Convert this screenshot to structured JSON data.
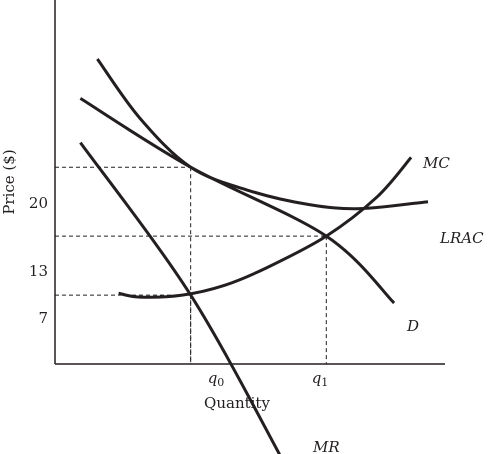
{
  "chart_data": {
    "type": "line",
    "xlabel": "Quantity",
    "ylabel": "Price ($)",
    "y_ticks": [
      "20",
      "13",
      "7"
    ],
    "x_ticks": [
      "q0",
      "q1"
    ],
    "x_tick_subscripts": [
      "0",
      "1"
    ],
    "series": [
      {
        "name": "MC",
        "points": [
          [
            0.75,
            7.2
          ],
          [
            1.0,
            6.8
          ],
          [
            1.5,
            7.0
          ],
          [
            2.0,
            8.0
          ],
          [
            2.5,
            9.8
          ],
          [
            3.2,
            13.0
          ],
          [
            3.8,
            17.0
          ],
          [
            4.2,
            21.0
          ]
        ]
      },
      {
        "name": "LRAC",
        "points": [
          [
            0.5,
            31.0
          ],
          [
            1.0,
            25.0
          ],
          [
            1.6,
            20.0
          ],
          [
            2.3,
            17.6
          ],
          [
            3.0,
            16.2
          ],
          [
            3.6,
            15.8
          ],
          [
            4.4,
            16.5
          ]
        ]
      },
      {
        "name": "D",
        "points": [
          [
            0.3,
            27.0
          ],
          [
            1.6,
            20.0
          ],
          [
            3.2,
            13.0
          ],
          [
            4.0,
            6.2
          ]
        ]
      },
      {
        "name": "MR",
        "points": [
          [
            0.3,
            22.5
          ],
          [
            1.6,
            7.0
          ],
          [
            2.7,
            -10.0
          ]
        ]
      }
    ],
    "guides": [
      {
        "y": 20,
        "x": 1.6,
        "label": "20"
      },
      {
        "y": 13,
        "x": 3.2,
        "label": "13"
      },
      {
        "y": 7,
        "x": 1.6,
        "label": "7"
      }
    ],
    "xlim": [
      0,
      4.6
    ],
    "ylim": [
      0,
      37
    ],
    "grid": false,
    "legend": "none",
    "colors": {
      "curve": "#231f20",
      "axis": "#231f20",
      "guide": "#231f20"
    }
  }
}
